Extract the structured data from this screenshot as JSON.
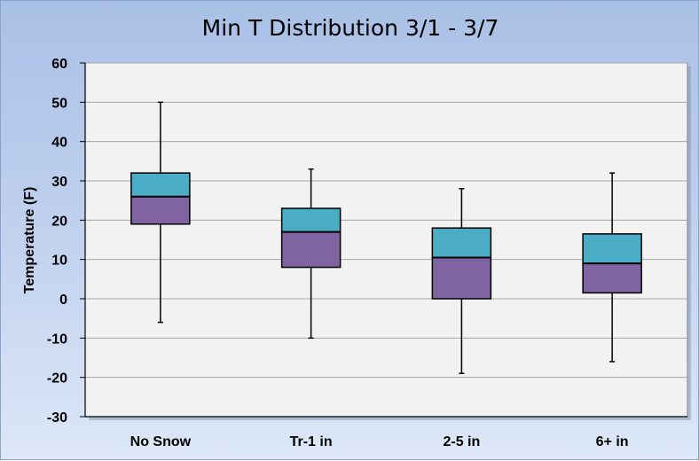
{
  "chart_data": {
    "type": "boxplot",
    "title": "Min T Distribution  3/1 - 3/7",
    "xlabel": "",
    "ylabel": "Temperature (F)",
    "ylim": [
      -30,
      60
    ],
    "yticks": [
      60,
      50,
      40,
      30,
      20,
      10,
      0,
      -10,
      -20,
      -30
    ],
    "ytick_labels": [
      "60",
      "50",
      "40",
      "30",
      "20",
      "10",
      "0",
      "-10",
      "-20",
      "-30"
    ],
    "grid": true,
    "legend": "none",
    "categories": [
      "No Snow",
      "Tr-1 in",
      "2-5 in",
      "6+ in"
    ],
    "boxes": [
      {
        "min": -6,
        "q1": 19,
        "median": 26,
        "q3": 32,
        "max": 50
      },
      {
        "min": -10,
        "q1": 8,
        "median": 17,
        "q3": 23,
        "max": 33
      },
      {
        "min": -19,
        "q1": 0,
        "median": 10.5,
        "q3": 18,
        "max": 28
      },
      {
        "min": -16,
        "q1": 1.5,
        "median": 9,
        "q3": 16.5,
        "max": 32
      }
    ],
    "colors": {
      "lower_box": "#8064a2",
      "upper_box": "#4bacc6",
      "plot_background": "#f2f2f2",
      "grid": "#a6a6a6"
    }
  }
}
